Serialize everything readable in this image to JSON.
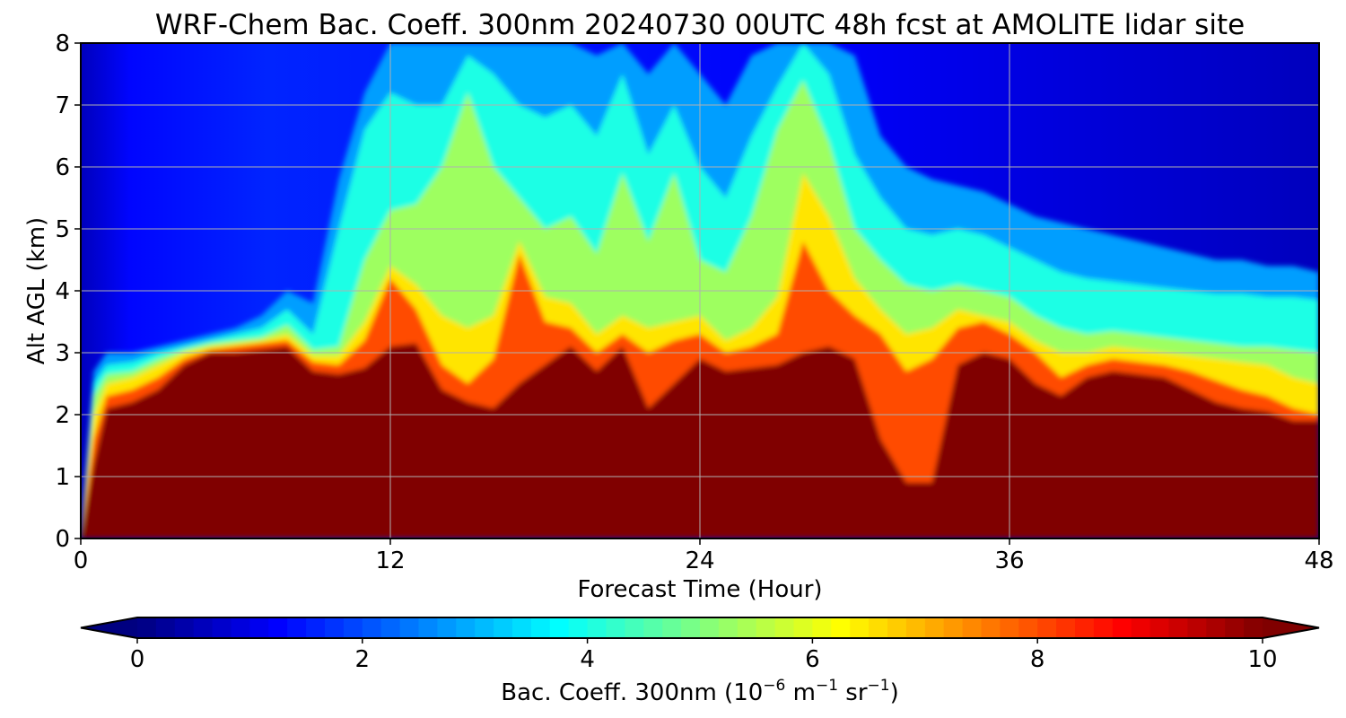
{
  "chart_data": {
    "type": "heatmap",
    "title": "WRF-Chem Bac. Coeff. 300nm  20240730 00UTC 48h fcst at AMOLITE lidar site",
    "xlabel": "Forecast Time (Hour)",
    "ylabel": "Alt AGL (km)",
    "xlim": [
      0,
      48
    ],
    "ylim": [
      0,
      8
    ],
    "xticks": [
      "0",
      "12",
      "24",
      "36",
      "48"
    ],
    "yticks": [
      "0",
      "1",
      "2",
      "3",
      "4",
      "5",
      "6",
      "7",
      "8"
    ],
    "grid": true,
    "colormap": "jet",
    "colorbar": {
      "label_main": "Bac. Coeff. 300nm  (10",
      "label_exp1": "−6",
      "label_mid": " m",
      "label_exp2": "−1",
      "label_mid2": " sr",
      "label_exp3": "−1",
      "label_end": ")",
      "ticks": [
        "0",
        "2",
        "4",
        "6",
        "8",
        "10"
      ],
      "range": [
        0,
        10
      ],
      "extend": "both"
    },
    "t": [
      0,
      0.5,
      1,
      2,
      3,
      4,
      5,
      6,
      7,
      8,
      9,
      10,
      11,
      12,
      13,
      14,
      15,
      16,
      17,
      18,
      19,
      20,
      21,
      22,
      23,
      24,
      25,
      26,
      27,
      28,
      29,
      30,
      31,
      32,
      33,
      34,
      35,
      36,
      37,
      38,
      39,
      40,
      41,
      42,
      43,
      44,
      45,
      46,
      47,
      48
    ],
    "layers": [
      {
        "name": "saturated",
        "value": 10,
        "top_km": [
          0,
          1.2,
          2.1,
          2.2,
          2.4,
          2.8,
          3.0,
          3.0,
          3.05,
          3.1,
          2.7,
          2.65,
          2.75,
          3.1,
          3.15,
          2.4,
          2.2,
          2.1,
          2.5,
          2.8,
          3.1,
          2.7,
          3.1,
          2.1,
          2.5,
          2.9,
          2.7,
          2.75,
          2.8,
          3.0,
          3.1,
          2.9,
          1.6,
          0.9,
          0.9,
          2.8,
          3.0,
          2.9,
          2.5,
          2.3,
          2.6,
          2.7,
          2.65,
          2.6,
          2.4,
          2.2,
          2.1,
          2.05,
          1.9,
          1.9
        ]
      },
      {
        "name": "orange",
        "value": 8,
        "top_km": [
          0,
          1.6,
          2.3,
          2.4,
          2.6,
          2.9,
          3.05,
          3.1,
          3.15,
          3.2,
          2.85,
          2.8,
          3.2,
          4.2,
          3.7,
          2.8,
          2.5,
          2.9,
          4.6,
          3.5,
          3.4,
          3.0,
          3.3,
          3.0,
          3.2,
          3.3,
          3.0,
          3.1,
          3.3,
          4.8,
          4.0,
          3.6,
          3.3,
          2.7,
          2.9,
          3.4,
          3.5,
          3.3,
          3.0,
          2.6,
          2.8,
          2.9,
          2.85,
          2.8,
          2.7,
          2.55,
          2.4,
          2.3,
          2.1,
          2.0
        ]
      },
      {
        "name": "yellow",
        "value": 6.5,
        "top_km": [
          0,
          2.0,
          2.5,
          2.6,
          2.8,
          3.0,
          3.1,
          3.15,
          3.2,
          3.3,
          2.95,
          2.95,
          3.5,
          4.4,
          4.1,
          3.6,
          3.4,
          3.6,
          4.8,
          3.9,
          3.8,
          3.3,
          3.6,
          3.4,
          3.5,
          3.6,
          3.2,
          3.4,
          3.9,
          5.9,
          5.2,
          4.2,
          3.7,
          3.3,
          3.4,
          3.7,
          3.6,
          3.5,
          3.2,
          3.0,
          3.0,
          3.1,
          3.05,
          3.0,
          2.95,
          2.9,
          2.85,
          2.8,
          2.6,
          2.5
        ]
      },
      {
        "name": "lightgreen",
        "value": 5.3,
        "top_km": [
          0,
          2.3,
          2.65,
          2.7,
          2.9,
          3.05,
          3.15,
          3.2,
          3.25,
          3.45,
          3.05,
          3.1,
          4.5,
          5.3,
          5.4,
          6.0,
          7.2,
          6.0,
          5.5,
          5.0,
          5.2,
          4.6,
          5.9,
          4.8,
          5.9,
          4.5,
          4.3,
          5.2,
          6.6,
          7.4,
          6.4,
          5.0,
          4.5,
          4.1,
          4.0,
          4.1,
          4.0,
          3.9,
          3.6,
          3.4,
          3.3,
          3.35,
          3.3,
          3.25,
          3.2,
          3.15,
          3.1,
          3.1,
          3.05,
          3.0
        ]
      },
      {
        "name": "cyan",
        "value": 4,
        "top_km": [
          0,
          2.5,
          2.8,
          2.85,
          3.0,
          3.1,
          3.2,
          3.3,
          3.4,
          3.7,
          3.3,
          5.0,
          6.6,
          7.2,
          7.0,
          7.0,
          7.8,
          7.5,
          7.0,
          6.8,
          7.0,
          6.5,
          7.5,
          6.2,
          7.0,
          6.0,
          5.5,
          6.5,
          7.3,
          8.0,
          7.5,
          6.2,
          5.5,
          5.0,
          4.9,
          5.0,
          4.9,
          4.7,
          4.5,
          4.3,
          4.2,
          4.15,
          4.1,
          4.05,
          4.0,
          3.95,
          3.95,
          3.9,
          3.9,
          3.85
        ]
      },
      {
        "name": "skyblue",
        "value": 2.8,
        "top_km": [
          0,
          2.7,
          3.0,
          3.0,
          3.1,
          3.2,
          3.3,
          3.4,
          3.6,
          4.0,
          3.8,
          5.8,
          7.2,
          8.0,
          8.0,
          8.0,
          8.0,
          8.0,
          8.0,
          8.0,
          8.0,
          7.8,
          8.0,
          7.5,
          8.0,
          7.5,
          7.0,
          7.8,
          8.0,
          8.0,
          8.0,
          7.8,
          6.5,
          6.0,
          5.8,
          5.7,
          5.6,
          5.4,
          5.2,
          5.1,
          5.0,
          4.9,
          4.8,
          4.7,
          4.6,
          4.5,
          4.5,
          4.4,
          4.4,
          4.3
        ]
      }
    ]
  }
}
